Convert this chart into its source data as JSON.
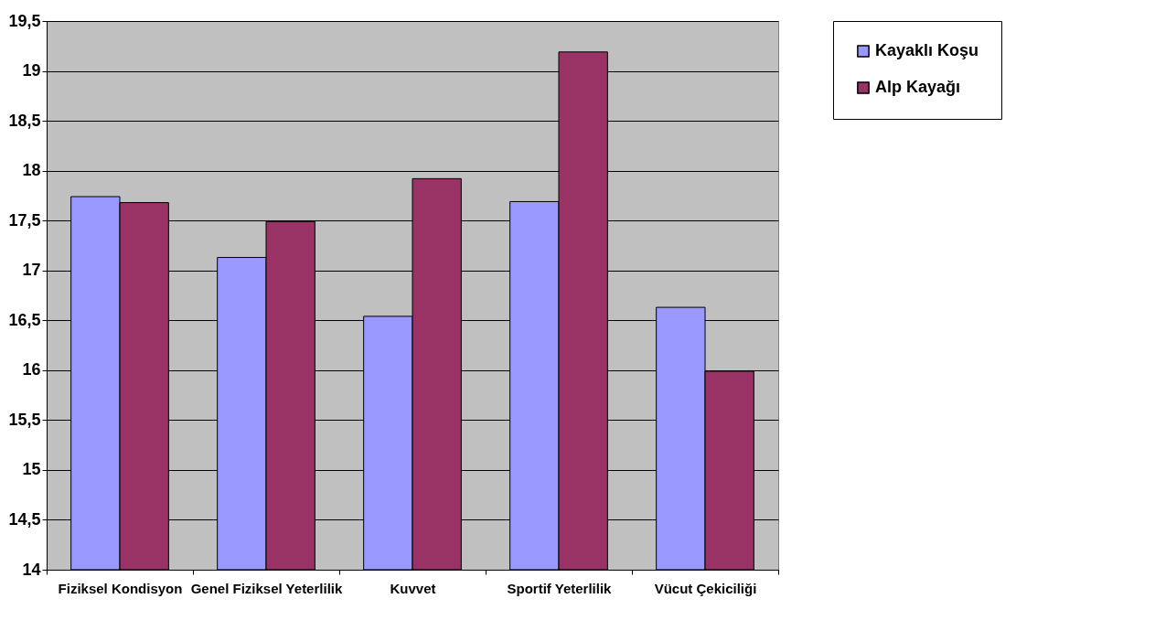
{
  "chart_data": {
    "type": "bar",
    "categories": [
      "Fiziksel Kondisyon",
      "Genel Fiziksel Yeterlilik",
      "Kuvvet",
      "Sportif Yeterlilik",
      "Vücut Çekiciliği"
    ],
    "series": [
      {
        "name": "Kayaklı Koşu",
        "color": "#9999ff",
        "values": [
          17.74,
          17.13,
          16.54,
          17.69,
          16.63
        ]
      },
      {
        "name": "Alp Kayağı",
        "color": "#993366",
        "values": [
          17.68,
          17.49,
          17.92,
          19.19,
          15.99
        ]
      }
    ],
    "ylim": [
      14,
      19.5
    ],
    "yticks": [
      14,
      {
        "value": 14.5,
        "label": "14,5"
      },
      15,
      {
        "value": 15.5,
        "label": "15,5"
      },
      16,
      {
        "value": 16.5,
        "label": "16,5"
      },
      17,
      {
        "value": 17.5,
        "label": "17,5"
      },
      18,
      {
        "value": 18.5,
        "label": "18,5"
      },
      19,
      {
        "value": 19.5,
        "label": "19,5"
      }
    ],
    "grid": "y",
    "legend": "right"
  }
}
